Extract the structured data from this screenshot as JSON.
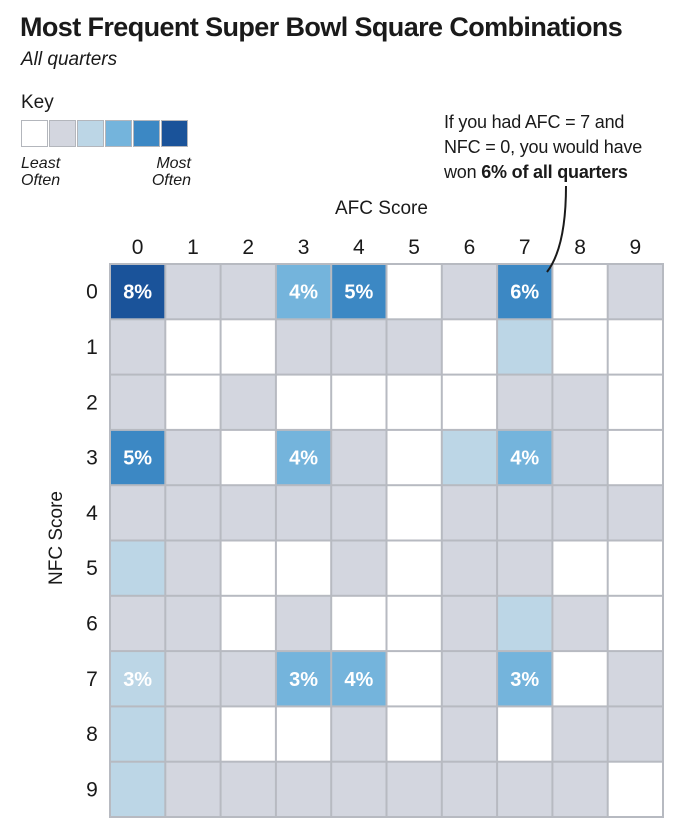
{
  "title": "Most Frequent Super Bowl Square Combinations",
  "subtitle": "All quarters",
  "key": {
    "label": "Key",
    "low_label": [
      "Least",
      "Often"
    ],
    "high_label": [
      "Most",
      "Often"
    ],
    "colors": [
      "#ffffff",
      "#d3d6df",
      "#bcd6e6",
      "#74b4dc",
      "#3c88c4",
      "#1a539a"
    ]
  },
  "annotation": {
    "line1": "If you had AFC = 7 and",
    "line2": "NFC = 0, you would have",
    "line3_plain": "won ",
    "line3_bold": "6% of all quarters"
  },
  "chart_data": {
    "type": "heatmap",
    "title": "Most Frequent Super Bowl Square Combinations",
    "subtitle": "All quarters",
    "xlabel": "AFC Score",
    "ylabel": "NFC Score",
    "x_categories": [
      "0",
      "1",
      "2",
      "3",
      "4",
      "5",
      "6",
      "7",
      "8",
      "9"
    ],
    "y_categories": [
      "0",
      "1",
      "2",
      "3",
      "4",
      "5",
      "6",
      "7",
      "8",
      "9"
    ],
    "frequency_levels": [
      [
        5,
        1,
        1,
        3,
        4,
        0,
        1,
        4,
        0,
        1
      ],
      [
        1,
        0,
        0,
        1,
        1,
        1,
        0,
        2,
        0,
        0
      ],
      [
        1,
        0,
        1,
        0,
        0,
        0,
        0,
        1,
        1,
        0
      ],
      [
        4,
        1,
        0,
        3,
        1,
        0,
        2,
        3,
        1,
        0
      ],
      [
        1,
        1,
        1,
        1,
        1,
        0,
        1,
        1,
        1,
        1
      ],
      [
        2,
        1,
        0,
        0,
        1,
        0,
        1,
        1,
        0,
        0
      ],
      [
        1,
        1,
        0,
        1,
        0,
        0,
        1,
        2,
        1,
        0
      ],
      [
        2,
        1,
        1,
        3,
        3,
        0,
        1,
        3,
        0,
        1
      ],
      [
        2,
        1,
        0,
        0,
        1,
        0,
        1,
        0,
        1,
        1
      ],
      [
        2,
        1,
        1,
        1,
        1,
        1,
        1,
        1,
        1,
        0
      ]
    ],
    "labeled_cells": [
      {
        "nfc": "0",
        "afc": "0",
        "label": "8%"
      },
      {
        "nfc": "0",
        "afc": "3",
        "label": "4%"
      },
      {
        "nfc": "0",
        "afc": "4",
        "label": "5%"
      },
      {
        "nfc": "0",
        "afc": "7",
        "label": "6%"
      },
      {
        "nfc": "3",
        "afc": "0",
        "label": "5%"
      },
      {
        "nfc": "3",
        "afc": "3",
        "label": "4%"
      },
      {
        "nfc": "3",
        "afc": "7",
        "label": "4%"
      },
      {
        "nfc": "7",
        "afc": "0",
        "label": "3%"
      },
      {
        "nfc": "7",
        "afc": "3",
        "label": "3%"
      },
      {
        "nfc": "7",
        "afc": "4",
        "label": "4%"
      },
      {
        "nfc": "7",
        "afc": "7",
        "label": "3%"
      }
    ]
  }
}
